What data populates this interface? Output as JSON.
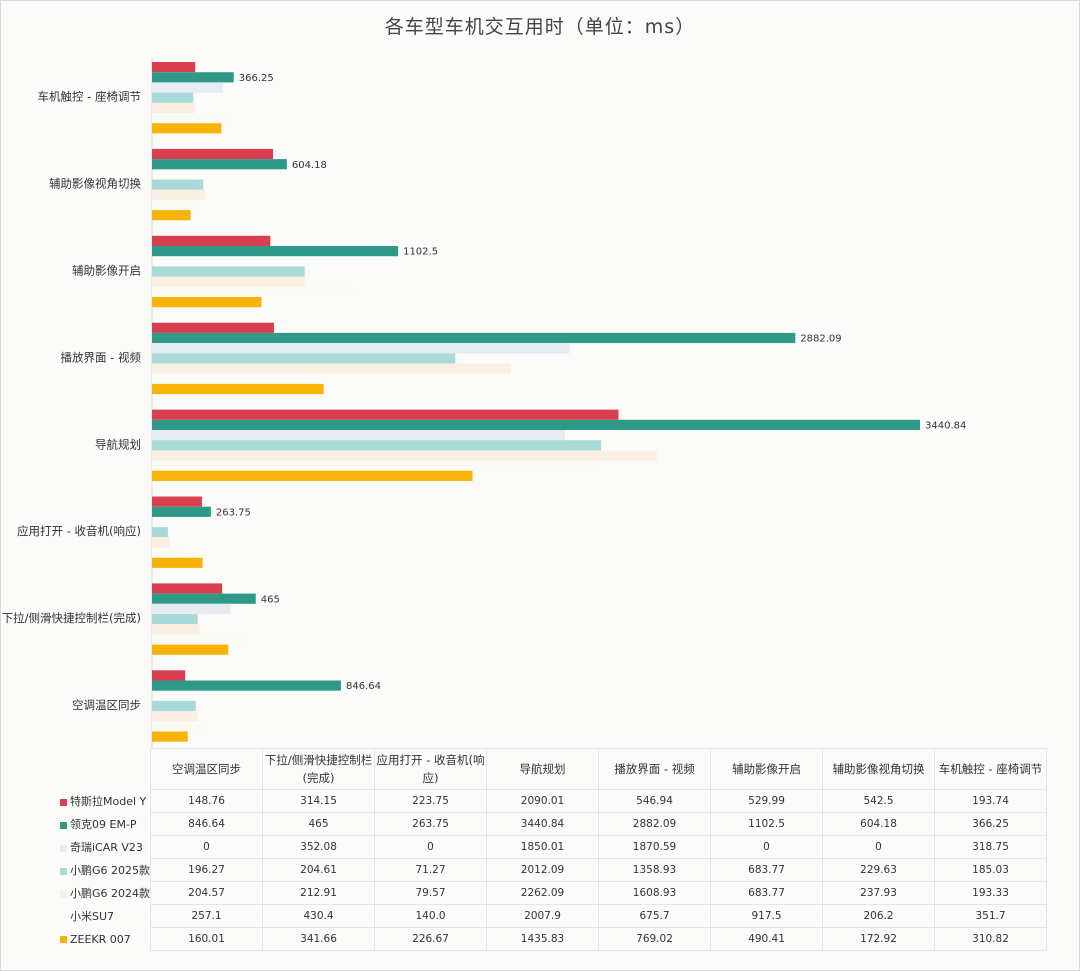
{
  "chart_data": {
    "type": "bar",
    "orientation": "horizontal",
    "title": "各车型车机交互用时（单位：ms）",
    "categories": [
      "车机触控 - 座椅调节",
      "辅助影像视角切换",
      "辅助影像开启",
      "播放界面 - 视频",
      "导航规划",
      "应用打开 - 收音机(响应)",
      "下拉/侧滑快捷控制栏(完成)",
      "空调温区同步"
    ],
    "series": [
      {
        "name": "特斯拉Model Y",
        "color": "#d9404f",
        "values": [
          193.74,
          542.5,
          529.99,
          546.94,
          2090.01,
          223.75,
          314.15,
          148.76
        ]
      },
      {
        "name": "领克09 EM-P",
        "color": "#2e9987",
        "values": [
          366.25,
          604.18,
          1102.5,
          2882.09,
          3440.84,
          263.75,
          465,
          846.64
        ]
      },
      {
        "name": "奇瑞iCAR V23",
        "color": "#e6ecf2",
        "values": [
          318.75,
          0,
          0,
          1870.59,
          1850.01,
          0,
          352.08,
          0
        ]
      },
      {
        "name": "小鹏G6 2025款",
        "color": "#a9dad7",
        "values": [
          185.03,
          229.63,
          683.77,
          1358.93,
          2012.09,
          71.27,
          204.61,
          196.27
        ]
      },
      {
        "name": "小鹏G6 2024款",
        "color": "#fbeee2",
        "values": [
          193.33,
          237.93,
          683.77,
          1608.93,
          2262.09,
          79.57,
          212.91,
          204.57
        ]
      },
      {
        "name": "小米SU7",
        "color": "#fbfbf6",
        "values": [
          351.7,
          206.2,
          917.5,
          675.7,
          2007.9,
          140.0,
          430.4,
          257.1
        ]
      },
      {
        "name": "ZEEKR 007",
        "color": "#f8b309",
        "values": [
          310.82,
          172.92,
          490.41,
          769.02,
          1435.83,
          226.67,
          341.66,
          160.01
        ]
      }
    ],
    "data_labels": {
      "series": "领克09 EM-P",
      "values": [
        "366.25",
        "604.18",
        "1102.5",
        "2882.09",
        "3440.84",
        "263.75",
        "465",
        "846.64"
      ]
    },
    "xlim": [
      0,
      3440.84
    ],
    "gridlines": false,
    "legend": "data-table-bottom"
  },
  "table": {
    "headers": [
      "空调温区同步",
      "下拉/侧滑快捷控制栏(完成)",
      "应用打开 - 收音机(响应)",
      "导航规划",
      "播放界面 - 视频",
      "辅助影像开启",
      "辅助影像视角切换",
      "车机触控 - 座椅调节"
    ],
    "rows": [
      {
        "name": "特斯拉Model Y",
        "color": "#d9404f",
        "values": [
          "148.76",
          "314.15",
          "223.75",
          "2090.01",
          "546.94",
          "529.99",
          "542.5",
          "193.74"
        ]
      },
      {
        "name": "领克09 EM-P",
        "color": "#2e9987",
        "values": [
          "846.64",
          "465",
          "263.75",
          "3440.84",
          "2882.09",
          "1102.5",
          "604.18",
          "366.25"
        ]
      },
      {
        "name": "奇瑞iCAR V23",
        "color": "#e6ecf2",
        "values": [
          "0",
          "352.08",
          "0",
          "1850.01",
          "1870.59",
          "0",
          "0",
          "318.75"
        ]
      },
      {
        "name": "小鹏G6 2025款",
        "color": "#a9dad7",
        "values": [
          "196.27",
          "204.61",
          "71.27",
          "2012.09",
          "1358.93",
          "683.77",
          "229.63",
          "185.03"
        ]
      },
      {
        "name": "小鹏G6 2024款",
        "color": "#fbeee2",
        "values": [
          "204.57",
          "212.91",
          "79.57",
          "2262.09",
          "1608.93",
          "683.77",
          "237.93",
          "193.33"
        ]
      },
      {
        "name": "小米SU7",
        "color": "",
        "values": [
          "257.1",
          "430.4",
          "140.0",
          "2007.9",
          "675.7",
          "917.5",
          "206.2",
          "351.7"
        ]
      },
      {
        "name": "ZEEKR 007",
        "color": "#f8b309",
        "values": [
          "160.01",
          "341.66",
          "226.67",
          "1435.83",
          "769.02",
          "490.41",
          "172.92",
          "310.82"
        ]
      }
    ]
  }
}
